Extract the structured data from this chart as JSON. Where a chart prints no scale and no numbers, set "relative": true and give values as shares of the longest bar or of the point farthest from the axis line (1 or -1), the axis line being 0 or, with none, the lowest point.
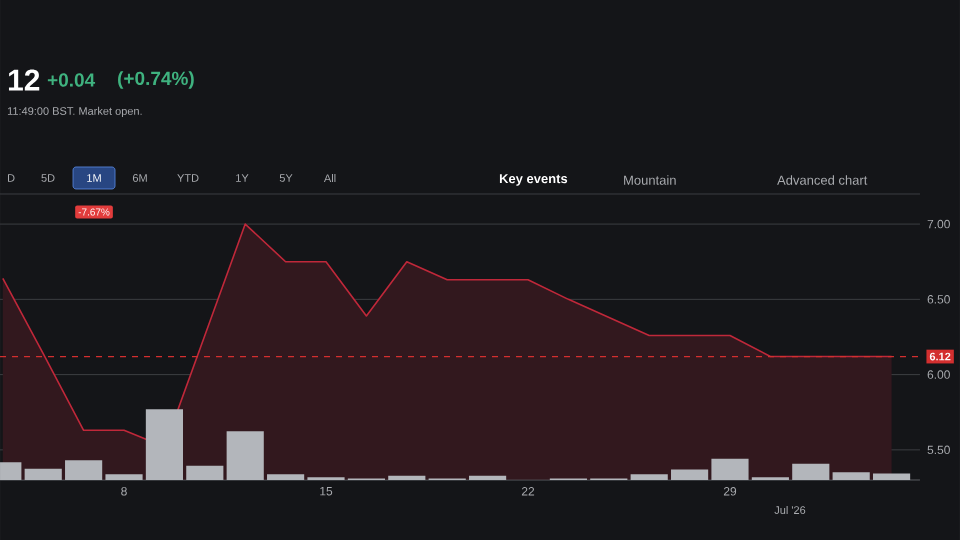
{
  "chart_data": [
    {
      "type": "area",
      "color": "#c0283a",
      "categories": [
        null,
        null,
        null,
        "8",
        null,
        null,
        null,
        null,
        "15",
        null,
        null,
        null,
        null,
        "22",
        null,
        null,
        null,
        null,
        "29",
        null,
        null,
        null,
        null
      ],
      "values": [
        6.64,
        6.14,
        5.63,
        5.63,
        5.52,
        6.26,
        7.0,
        6.75,
        6.75,
        6.39,
        6.75,
        6.63,
        6.63,
        6.63,
        6.5,
        6.38,
        6.26,
        6.26,
        6.26,
        6.12,
        6.12,
        6.12,
        6.12
      ],
      "ylim": [
        5.3,
        7.2
      ],
      "yticks": [
        {
          "value": 5.5,
          "label": "5.50"
        },
        {
          "value": 6.0,
          "label": "6.00"
        },
        {
          "value": 6.5,
          "label": "6.50"
        },
        {
          "value": 7.0,
          "label": "7.00"
        }
      ],
      "grid": "y",
      "ref_lines": [
        {
          "axis": "y",
          "value": 6.12,
          "label": "6.12",
          "color": "#d32f2f",
          "line_style": "dashed"
        }
      ],
      "annotations": [
        "12",
        "+0.04",
        "(+0.74%)",
        "11:49:00 BST. Market open.",
        "D",
        "5D",
        "1M",
        "6M",
        "YTD",
        "1Y",
        "5Y",
        "All",
        "Key events",
        "Mountain",
        "Advanced chart",
        "-7.67%",
        "Jul '26"
      ]
    },
    {
      "type": "bar",
      "color": "#b3b6bb",
      "relative": true,
      "categories": [
        null,
        null,
        null,
        null,
        null,
        null,
        null,
        null,
        null,
        null,
        null,
        null,
        null,
        null,
        null,
        null,
        null,
        null,
        null,
        null,
        null,
        null,
        null
      ],
      "values": [
        0.25,
        0.16,
        0.28,
        0.08,
        1,
        0.2,
        0.69,
        0.08,
        0.04,
        0.02,
        0.06,
        0.02,
        0.06,
        0,
        0.02,
        0.02,
        0.08,
        0.15,
        0.3,
        0.04,
        0.23,
        0.11,
        0.09
      ]
    }
  ]
}
